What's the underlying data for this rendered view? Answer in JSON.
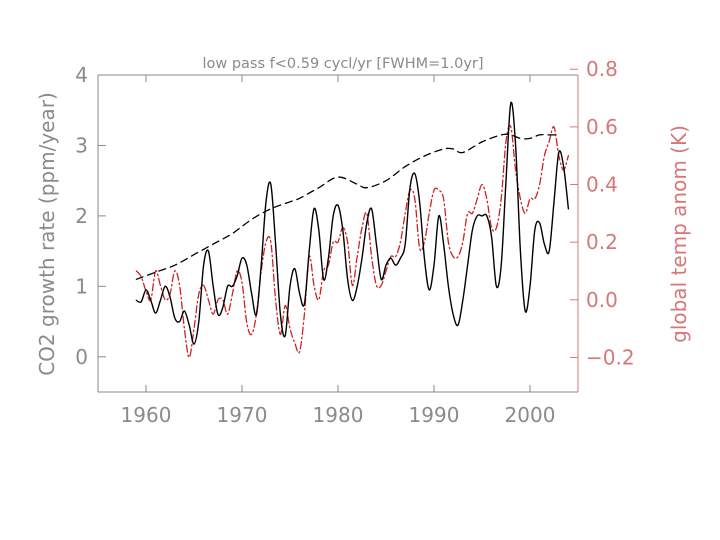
{
  "chart_data": {
    "type": "line",
    "title": "low pass  f<0.59 cycl/yr   [FWHM=1.0yr]",
    "xlabel": "",
    "ylabel_left": "CO2 growth rate (ppm/year)",
    "ylabel_right": "global temp anom (K)",
    "xlim": [
      1955,
      2005
    ],
    "ylim_left": [
      -0.5,
      4.0
    ],
    "ylim_right": [
      -0.32,
      0.78
    ],
    "x_ticks": [
      1960,
      1970,
      1980,
      1990,
      2000
    ],
    "y_ticks_left": [
      0,
      1,
      2,
      3,
      4
    ],
    "y_ticks_right": [
      -0.2,
      0.0,
      0.2,
      0.4,
      0.6,
      0.8
    ],
    "grid": false,
    "colors": {
      "axis": "#8a8a8a",
      "right_axis": "#d67878",
      "co2": "#000000",
      "trend": "#000000",
      "temp": "#cc2222"
    },
    "series": [
      {
        "key": "co2",
        "axis": "left",
        "style": "solid",
        "points": [
          [
            1959,
            0.8
          ],
          [
            1959.5,
            0.78
          ],
          [
            1960,
            0.95
          ],
          [
            1960.5,
            0.8
          ],
          [
            1961,
            0.62
          ],
          [
            1961.5,
            0.8
          ],
          [
            1962,
            1.0
          ],
          [
            1962.5,
            0.85
          ],
          [
            1963,
            0.55
          ],
          [
            1963.5,
            0.5
          ],
          [
            1964,
            0.65
          ],
          [
            1964.5,
            0.45
          ],
          [
            1965,
            0.18
          ],
          [
            1965.5,
            0.5
          ],
          [
            1966,
            1.3
          ],
          [
            1966.5,
            1.5
          ],
          [
            1967,
            1.0
          ],
          [
            1967.5,
            0.6
          ],
          [
            1968,
            0.7
          ],
          [
            1968.5,
            1.0
          ],
          [
            1969,
            1.0
          ],
          [
            1969.5,
            1.15
          ],
          [
            1970,
            1.4
          ],
          [
            1970.5,
            1.3
          ],
          [
            1971,
            0.9
          ],
          [
            1971.5,
            0.6
          ],
          [
            1972,
            1.3
          ],
          [
            1972.5,
            2.2
          ],
          [
            1973,
            2.45
          ],
          [
            1973.5,
            1.6
          ],
          [
            1974,
            0.6
          ],
          [
            1974.5,
            0.3
          ],
          [
            1975,
            1.0
          ],
          [
            1975.5,
            1.25
          ],
          [
            1976,
            0.9
          ],
          [
            1976.5,
            0.75
          ],
          [
            1977,
            1.5
          ],
          [
            1977.5,
            2.1
          ],
          [
            1978,
            1.8
          ],
          [
            1978.5,
            1.1
          ],
          [
            1979,
            1.4
          ],
          [
            1979.5,
            2.0
          ],
          [
            1980,
            2.15
          ],
          [
            1980.5,
            1.8
          ],
          [
            1981,
            1.1
          ],
          [
            1981.5,
            0.8
          ],
          [
            1982,
            1.0
          ],
          [
            1982.5,
            1.4
          ],
          [
            1983,
            1.9
          ],
          [
            1983.5,
            2.1
          ],
          [
            1984,
            1.6
          ],
          [
            1984.5,
            1.1
          ],
          [
            1985,
            1.3
          ],
          [
            1985.5,
            1.4
          ],
          [
            1986,
            1.3
          ],
          [
            1986.5,
            1.4
          ],
          [
            1987,
            1.6
          ],
          [
            1987.5,
            2.4
          ],
          [
            1988,
            2.6
          ],
          [
            1988.5,
            2.2
          ],
          [
            1989,
            1.4
          ],
          [
            1989.5,
            0.95
          ],
          [
            1990,
            1.3
          ],
          [
            1990.5,
            2.0
          ],
          [
            1991,
            1.6
          ],
          [
            1991.5,
            1.0
          ],
          [
            1992,
            0.6
          ],
          [
            1992.5,
            0.45
          ],
          [
            1993,
            0.8
          ],
          [
            1993.5,
            1.3
          ],
          [
            1994,
            1.8
          ],
          [
            1994.5,
            2.0
          ],
          [
            1995,
            2.0
          ],
          [
            1995.5,
            2.0
          ],
          [
            1996,
            1.7
          ],
          [
            1996.5,
            1.0
          ],
          [
            1997,
            1.3
          ],
          [
            1997.5,
            2.5
          ],
          [
            1998,
            3.6
          ],
          [
            1998.5,
            3.0
          ],
          [
            1999,
            1.5
          ],
          [
            1999.5,
            0.65
          ],
          [
            2000,
            1.0
          ],
          [
            2000.5,
            1.8
          ],
          [
            2001,
            1.9
          ],
          [
            2001.5,
            1.6
          ],
          [
            2002,
            1.5
          ],
          [
            2002.5,
            2.2
          ],
          [
            2003,
            2.9
          ],
          [
            2003.5,
            2.7
          ],
          [
            2004,
            2.1
          ]
        ]
      },
      {
        "key": "trend",
        "axis": "left",
        "style": "dashed",
        "points": [
          [
            1959,
            1.1
          ],
          [
            1961,
            1.2
          ],
          [
            1963,
            1.3
          ],
          [
            1965,
            1.45
          ],
          [
            1967,
            1.6
          ],
          [
            1969,
            1.75
          ],
          [
            1971,
            1.95
          ],
          [
            1973,
            2.1
          ],
          [
            1975,
            2.2
          ],
          [
            1976,
            2.25
          ],
          [
            1978,
            2.4
          ],
          [
            1980,
            2.55
          ],
          [
            1982,
            2.45
          ],
          [
            1983,
            2.4
          ],
          [
            1985,
            2.5
          ],
          [
            1987,
            2.7
          ],
          [
            1989,
            2.85
          ],
          [
            1991,
            2.95
          ],
          [
            1992,
            2.95
          ],
          [
            1993,
            2.9
          ],
          [
            1995,
            3.05
          ],
          [
            1997,
            3.15
          ],
          [
            1998,
            3.15
          ],
          [
            1999,
            3.1
          ],
          [
            2000,
            3.1
          ],
          [
            2001,
            3.15
          ],
          [
            2002,
            3.15
          ],
          [
            2003,
            3.15
          ]
        ]
      },
      {
        "key": "temp",
        "axis": "right",
        "style": "dashdot",
        "points": [
          [
            1959,
            0.1
          ],
          [
            1959.5,
            0.08
          ],
          [
            1960,
            0.03
          ],
          [
            1960.5,
            0.0
          ],
          [
            1961,
            0.1
          ],
          [
            1961.5,
            0.05
          ],
          [
            1962,
            0.0
          ],
          [
            1962.5,
            0.02
          ],
          [
            1963,
            0.1
          ],
          [
            1963.5,
            0.05
          ],
          [
            1964,
            -0.1
          ],
          [
            1964.5,
            -0.2
          ],
          [
            1965,
            -0.1
          ],
          [
            1965.5,
            0.02
          ],
          [
            1966,
            0.05
          ],
          [
            1966.5,
            0.0
          ],
          [
            1967,
            -0.05
          ],
          [
            1967.5,
            0.0
          ],
          [
            1968,
            0.0
          ],
          [
            1968.5,
            -0.05
          ],
          [
            1969,
            0.02
          ],
          [
            1969.5,
            0.1
          ],
          [
            1970,
            0.06
          ],
          [
            1970.5,
            -0.08
          ],
          [
            1971,
            -0.12
          ],
          [
            1971.5,
            -0.05
          ],
          [
            1972,
            0.1
          ],
          [
            1972.5,
            0.2
          ],
          [
            1973,
            0.2
          ],
          [
            1973.5,
            0.0
          ],
          [
            1974,
            -0.12
          ],
          [
            1974.5,
            -0.02
          ],
          [
            1975,
            -0.1
          ],
          [
            1975.5,
            -0.15
          ],
          [
            1976,
            -0.18
          ],
          [
            1976.5,
            -0.05
          ],
          [
            1977,
            0.15
          ],
          [
            1977.5,
            0.05
          ],
          [
            1978,
            0.0
          ],
          [
            1978.5,
            0.1
          ],
          [
            1979,
            0.12
          ],
          [
            1979.5,
            0.2
          ],
          [
            1980,
            0.2
          ],
          [
            1980.5,
            0.25
          ],
          [
            1981,
            0.2
          ],
          [
            1981.5,
            0.05
          ],
          [
            1982,
            0.15
          ],
          [
            1982.5,
            0.25
          ],
          [
            1983,
            0.3
          ],
          [
            1983.5,
            0.15
          ],
          [
            1984,
            0.05
          ],
          [
            1984.5,
            0.05
          ],
          [
            1985,
            0.1
          ],
          [
            1985.5,
            0.15
          ],
          [
            1986,
            0.15
          ],
          [
            1986.5,
            0.2
          ],
          [
            1987,
            0.3
          ],
          [
            1987.5,
            0.38
          ],
          [
            1988,
            0.35
          ],
          [
            1988.5,
            0.18
          ],
          [
            1989,
            0.2
          ],
          [
            1989.5,
            0.3
          ],
          [
            1990,
            0.38
          ],
          [
            1990.5,
            0.38
          ],
          [
            1991,
            0.35
          ],
          [
            1991.5,
            0.2
          ],
          [
            1992,
            0.15
          ],
          [
            1992.5,
            0.15
          ],
          [
            1993,
            0.2
          ],
          [
            1993.5,
            0.3
          ],
          [
            1994,
            0.3
          ],
          [
            1994.5,
            0.35
          ],
          [
            1995,
            0.4
          ],
          [
            1995.5,
            0.35
          ],
          [
            1996,
            0.25
          ],
          [
            1996.5,
            0.25
          ],
          [
            1997,
            0.35
          ],
          [
            1997.5,
            0.55
          ],
          [
            1998,
            0.6
          ],
          [
            1998.5,
            0.45
          ],
          [
            1999,
            0.35
          ],
          [
            1999.5,
            0.3
          ],
          [
            2000,
            0.35
          ],
          [
            2000.5,
            0.35
          ],
          [
            2001,
            0.4
          ],
          [
            2001.5,
            0.5
          ],
          [
            2002,
            0.55
          ],
          [
            2002.5,
            0.6
          ],
          [
            2003,
            0.5
          ],
          [
            2003.5,
            0.45
          ],
          [
            2004,
            0.5
          ]
        ]
      }
    ]
  }
}
